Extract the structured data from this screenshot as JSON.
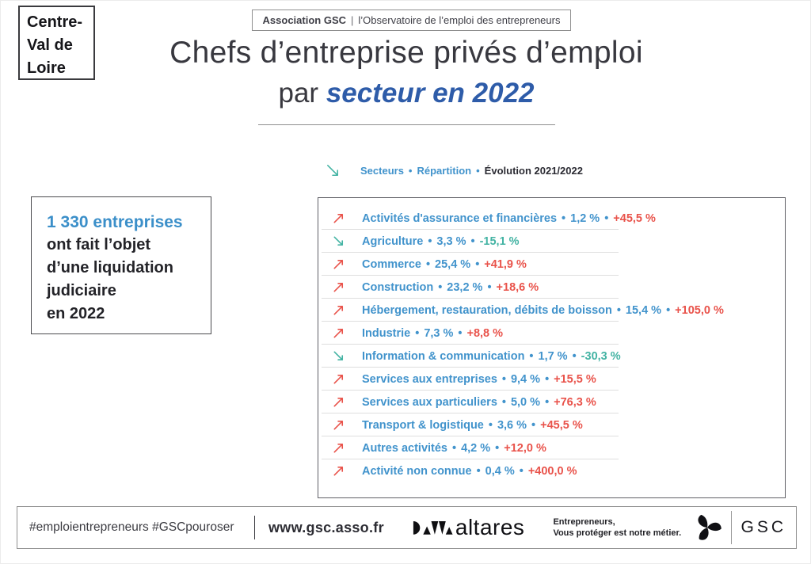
{
  "region_badge": {
    "line1": "Centre-",
    "line2": "Val de",
    "line3": "Loire"
  },
  "association_badge": {
    "name": "Association GSC",
    "divider": "|",
    "subtitle": "l’Observatoire de l’emploi des entrepreneurs"
  },
  "title": {
    "line1": "Chefs d’entreprise privés d’emploi",
    "line2_prefix": "par",
    "line2_highlight": "secteur en 2022"
  },
  "liquidation_box": {
    "headline": "1 330 entreprises",
    "line1": "ont fait l’objet",
    "line2": "d’une liquidation",
    "line3": "judiciaire",
    "line4": "en 2022"
  },
  "table": {
    "bullet": "•",
    "header": {
      "col_sectors": "Secteurs",
      "col_repartition": "Répartition",
      "col_evolution": "Évolution 2021/2022"
    },
    "rows": [
      {
        "sector": "Activités d'assurance et financières",
        "share": "1,2 %",
        "evolution": "+45,5 %",
        "direction": "up"
      },
      {
        "sector": "Agriculture",
        "share": "3,3 %",
        "evolution": "-15,1 %",
        "direction": "down"
      },
      {
        "sector": "Commerce",
        "share": "25,4 %",
        "evolution": "+41,9 %",
        "direction": "up"
      },
      {
        "sector": "Construction",
        "share": "23,2 %",
        "evolution": "+18,6 %",
        "direction": "up"
      },
      {
        "sector": "Hébergement, restauration, débits de boisson",
        "share": "15,4 %",
        "evolution": "+105,0 %",
        "direction": "up"
      },
      {
        "sector": "Industrie",
        "share": "7,3 %",
        "evolution": "+8,8 %",
        "direction": "up"
      },
      {
        "sector": "Information & communication",
        "share": "1,7 %",
        "evolution": "-30,3 %",
        "direction": "down"
      },
      {
        "sector": "Services aux entreprises",
        "share": "9,4 %",
        "evolution": "+15,5 %",
        "direction": "up"
      },
      {
        "sector": "Services aux particuliers",
        "share": "5,0 %",
        "evolution": "+76,3 %",
        "direction": "up"
      },
      {
        "sector": "Transport & logistique",
        "share": "3,6 %",
        "evolution": "+45,5 %",
        "direction": "up"
      },
      {
        "sector": "Autres activités",
        "share": "4,2 %",
        "evolution": "+12,0 %",
        "direction": "up"
      },
      {
        "sector": "Activité non connue",
        "share": "0,4 %",
        "evolution": "+400,0 %",
        "direction": "up"
      }
    ]
  },
  "footer": {
    "hashtags": "#emploientrepreneurs #GSCpouroser",
    "website": "www.gsc.asso.fr",
    "altares_wordmark": "altares",
    "tagline_line1": "Entrepreneurs,",
    "tagline_line2": "Vous protéger est notre métier.",
    "gsc_wordmark": "GSC"
  },
  "colors": {
    "blue": "#4193cc",
    "red": "#e9534b",
    "teal": "#43b3a3",
    "title_blue": "#2e5ca9",
    "headline_blue": "#3b8fc9"
  }
}
